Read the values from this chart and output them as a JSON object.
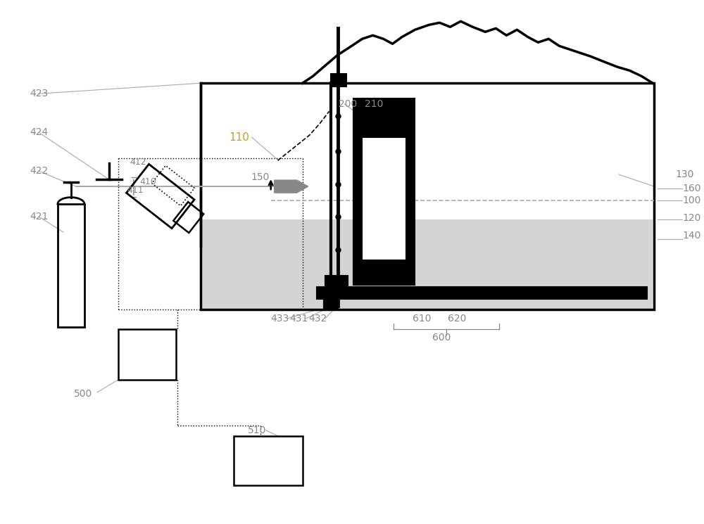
{
  "bg_color": "#ffffff",
  "label_color": "#888888",
  "label_fontsize": 10,
  "gold_color": "#c8a020",
  "black": "#000000",
  "gray": "#aaaaaa",
  "lgray": "#d4d4d4"
}
